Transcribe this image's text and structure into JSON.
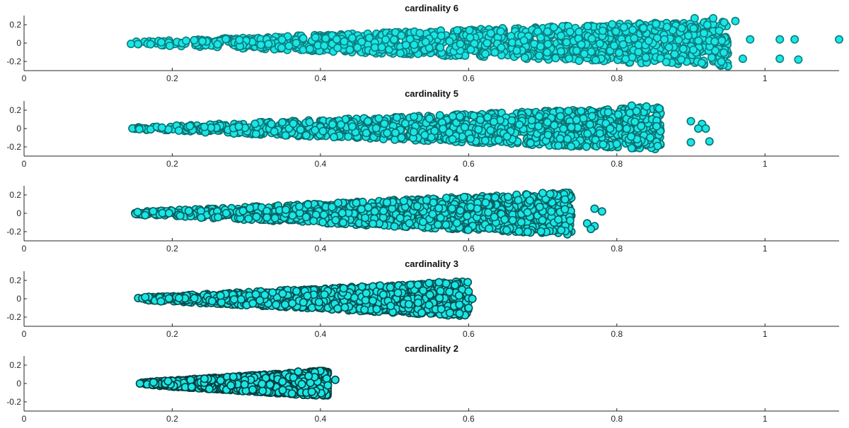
{
  "chart_data": [
    {
      "type": "scatter",
      "title": "cardinality 6",
      "xlim": [
        0,
        1.1
      ],
      "ylim": [
        -0.3,
        0.3
      ],
      "xticks": [
        "0",
        "0.2",
        "0.4",
        "0.6",
        "0.8",
        "1"
      ],
      "yticks": [
        "0.2",
        "0",
        "-0.2"
      ],
      "marker_face": "#19e6e6",
      "marker_edge": "#0d7d7d",
      "cluster": {
        "x_min": 0.135,
        "x_max": 0.95,
        "y_upper": 0.24,
        "y_lower": -0.24
      },
      "outliers": [
        {
          "x": 0.905,
          "y": 0.27
        },
        {
          "x": 0.93,
          "y": 0.27
        },
        {
          "x": 0.98,
          "y": 0.04
        },
        {
          "x": 1.02,
          "y": 0.04
        },
        {
          "x": 1.04,
          "y": 0.04
        },
        {
          "x": 1.1,
          "y": 0.04
        },
        {
          "x": 0.97,
          "y": -0.17
        },
        {
          "x": 1.02,
          "y": -0.17
        },
        {
          "x": 1.045,
          "y": -0.18
        },
        {
          "x": 0.96,
          "y": 0.24
        }
      ]
    },
    {
      "type": "scatter",
      "title": "cardinality 5",
      "xlim": [
        0,
        1.1
      ],
      "ylim": [
        -0.3,
        0.3
      ],
      "xticks": [
        "0",
        "0.2",
        "0.4",
        "0.6",
        "0.8",
        "1"
      ],
      "yticks": [
        "0.2",
        "0",
        "-0.2"
      ],
      "marker_face": "#19e6e6",
      "marker_edge": "#0b6f6f",
      "cluster": {
        "x_min": 0.14,
        "x_max": 0.86,
        "y_upper": 0.23,
        "y_lower": -0.22
      },
      "outliers": [
        {
          "x": 0.82,
          "y": 0.25
        },
        {
          "x": 0.84,
          "y": 0.24
        },
        {
          "x": 0.9,
          "y": 0.08
        },
        {
          "x": 0.915,
          "y": 0.05
        },
        {
          "x": 0.92,
          "y": 0.0
        },
        {
          "x": 0.9,
          "y": -0.15
        },
        {
          "x": 0.925,
          "y": -0.14
        },
        {
          "x": 0.91,
          "y": 0.0
        }
      ]
    },
    {
      "type": "scatter",
      "title": "cardinality 4",
      "xlim": [
        0,
        1.1
      ],
      "ylim": [
        -0.3,
        0.3
      ],
      "xticks": [
        "0",
        "0.2",
        "0.4",
        "0.6",
        "0.8",
        "1"
      ],
      "yticks": [
        "0.2",
        "0",
        "-0.2"
      ],
      "marker_face": "#19e6e6",
      "marker_edge": "#0a6060",
      "cluster": {
        "x_min": 0.14,
        "x_max": 0.74,
        "y_upper": 0.22,
        "y_lower": -0.22
      },
      "outliers": [
        {
          "x": 0.7,
          "y": 0.22
        },
        {
          "x": 0.71,
          "y": 0.21
        },
        {
          "x": 0.77,
          "y": 0.05
        },
        {
          "x": 0.78,
          "y": 0.02
        },
        {
          "x": 0.76,
          "y": -0.11
        },
        {
          "x": 0.77,
          "y": -0.14
        },
        {
          "x": 0.765,
          "y": -0.17
        }
      ]
    },
    {
      "type": "scatter",
      "title": "cardinality 3",
      "xlim": [
        0,
        1.1
      ],
      "ylim": [
        -0.3,
        0.3
      ],
      "xticks": [
        "0",
        "0.2",
        "0.4",
        "0.6",
        "0.8",
        "1"
      ],
      "yticks": [
        "0.2",
        "0",
        "-0.2"
      ],
      "marker_face": "#19e6e6",
      "marker_edge": "#084f4f",
      "cluster": {
        "x_min": 0.145,
        "x_max": 0.6,
        "y_upper": 0.18,
        "y_lower": -0.18
      },
      "outliers": [
        {
          "x": 0.6,
          "y": 0.08
        },
        {
          "x": 0.605,
          "y": 0.0
        },
        {
          "x": 0.6,
          "y": -0.1
        },
        {
          "x": 0.56,
          "y": 0.18
        }
      ]
    },
    {
      "type": "scatter",
      "title": "cardinality 2",
      "xlim": [
        0,
        1.1
      ],
      "ylim": [
        -0.3,
        0.3
      ],
      "xticks": [
        "0",
        "0.2",
        "0.4",
        "0.6",
        "0.8",
        "1"
      ],
      "yticks": [
        "0.2",
        "0",
        "-0.2"
      ],
      "marker_face": "#19e6e6",
      "marker_edge": "#063d3d",
      "cluster": {
        "x_min": 0.155,
        "x_max": 0.41,
        "y_upper": 0.13,
        "y_lower": -0.13
      },
      "outliers": [
        {
          "x": 0.42,
          "y": 0.04
        },
        {
          "x": 0.41,
          "y": -0.02
        },
        {
          "x": 0.37,
          "y": 0.13
        }
      ]
    }
  ]
}
